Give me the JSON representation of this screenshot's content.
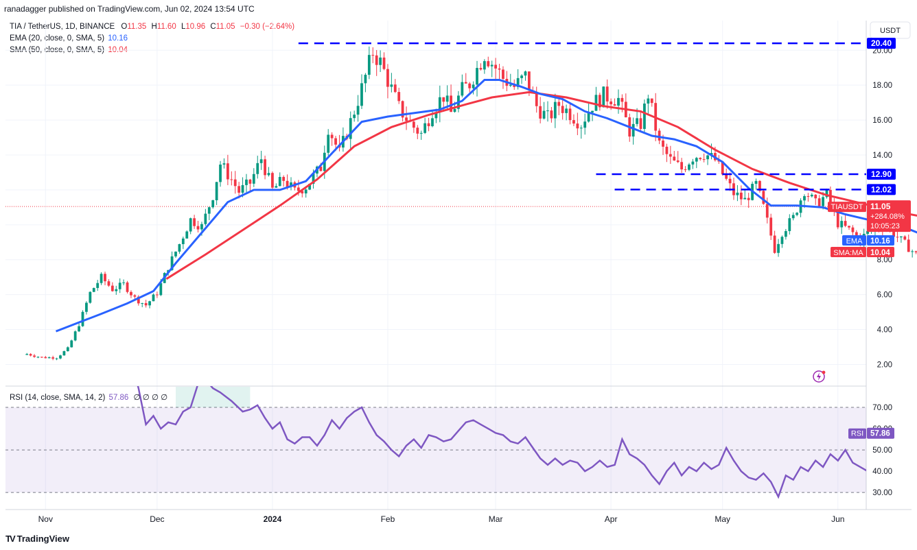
{
  "caption": "ranadagger published on TradingView.com, Jun 02, 2024 13:54 UTC",
  "brand": "TradingView",
  "legend": {
    "symbol": "TIA / TetherUS, 1D, BINANCE",
    "ohlc": [
      {
        "k": "O",
        "v": "11.35"
      },
      {
        "k": "H",
        "v": "11.60"
      },
      {
        "k": "L",
        "v": "10.96"
      },
      {
        "k": "C",
        "v": "11.05"
      }
    ],
    "change": "−0.30 (−2.64%)",
    "ema": {
      "label": "EMA (20, close, 0, SMA, 5)",
      "value": "10.16"
    },
    "sma": {
      "label": "SMA (50, close, 0, SMA, 5)",
      "value": "10.04"
    }
  },
  "rsi_legend": {
    "label": "RSI (14, close, SMA, 14, 2)",
    "value": "57.86",
    "extra": "∅ ∅ ∅ ∅"
  },
  "colors": {
    "up": "#089981",
    "down": "#f23645",
    "ema": "#2962ff",
    "sma": "#f23645",
    "rsi": "#7e57c2",
    "level": "#0000ff"
  },
  "chart_data": {
    "type": "candlestick",
    "currency": "USDT",
    "x_labels": [
      {
        "label": "Nov",
        "date": "2023-11-01"
      },
      {
        "label": "Dec",
        "date": "2023-12-01"
      },
      {
        "label": "2024",
        "date": "2024-01-01"
      },
      {
        "label": "Feb",
        "date": "2024-02-01"
      },
      {
        "label": "Mar",
        "date": "2024-03-01"
      },
      {
        "label": "Apr",
        "date": "2024-04-01"
      },
      {
        "label": "May",
        "date": "2024-05-01"
      },
      {
        "label": "Jun",
        "date": "2024-06-01"
      }
    ],
    "x_range": [
      "2023-10-27",
      "2024-06-30"
    ],
    "y_range": [
      0.8,
      21.7
    ],
    "y_ticks": [
      "2.00",
      "4.00",
      "6.00",
      "8.00",
      "10.00",
      "12.00",
      "14.00",
      "16.00",
      "18.00",
      "20.00"
    ],
    "horizontal_levels": [
      {
        "value": 20.4,
        "label": "20.40",
        "from": "2024-01-08"
      },
      {
        "value": 12.9,
        "label": "12.90",
        "from": "2024-03-28"
      },
      {
        "value": 12.02,
        "label": "12.02",
        "from": "2024-04-02"
      }
    ],
    "closes": [
      [
        0,
        2.6
      ],
      [
        4,
        2.4
      ],
      [
        8,
        2.4
      ],
      [
        11,
        2.9
      ],
      [
        14,
        4.3
      ],
      [
        17,
        6.1
      ],
      [
        20,
        7.0
      ],
      [
        23,
        6.3
      ],
      [
        26,
        6.6
      ],
      [
        29,
        5.8
      ],
      [
        32,
        5.4
      ],
      [
        35,
        6.1
      ],
      [
        38,
        7.6
      ],
      [
        41,
        8.9
      ],
      [
        44,
        10.3
      ],
      [
        47,
        9.9
      ],
      [
        50,
        11.7
      ],
      [
        52,
        13.5
      ],
      [
        55,
        12.6
      ],
      [
        57,
        11.9
      ],
      [
        60,
        12.4
      ],
      [
        63,
        13.8
      ],
      [
        66,
        12.0
      ],
      [
        69,
        12.6
      ],
      [
        72,
        11.9
      ],
      [
        75,
        12.2
      ],
      [
        79,
        13.3
      ],
      [
        81,
        15.6
      ],
      [
        84,
        14.1
      ],
      [
        87,
        15.9
      ],
      [
        90,
        17.8
      ],
      [
        93,
        19.9
      ],
      [
        95,
        19.3
      ],
      [
        97,
        18.3
      ],
      [
        100,
        16.7
      ],
      [
        103,
        15.8
      ],
      [
        106,
        15.2
      ],
      [
        109,
        16.6
      ],
      [
        112,
        17.4
      ],
      [
        114,
        16.4
      ],
      [
        117,
        17.7
      ],
      [
        119,
        18.1
      ],
      [
        123,
        19.8
      ],
      [
        126,
        19.0
      ],
      [
        128,
        18.4
      ],
      [
        131,
        17.9
      ],
      [
        134,
        18.5
      ],
      [
        137,
        16.8
      ],
      [
        140,
        16.1
      ],
      [
        143,
        16.9
      ],
      [
        146,
        16.4
      ],
      [
        149,
        15.8
      ],
      [
        152,
        16.9
      ],
      [
        155,
        17.4
      ],
      [
        159,
        17.2
      ],
      [
        162,
        15.4
      ],
      [
        165,
        15.8
      ],
      [
        167,
        17.5
      ],
      [
        170,
        14.6
      ],
      [
        173,
        13.7
      ],
      [
        176,
        13.2
      ],
      [
        179,
        13.9
      ],
      [
        182,
        14.1
      ],
      [
        185,
        13.7
      ],
      [
        187,
        12.9
      ],
      [
        190,
        11.8
      ],
      [
        193,
        11.4
      ],
      [
        196,
        12.3
      ],
      [
        198,
        11.0
      ],
      [
        201,
        8.6
      ],
      [
        203,
        9.6
      ],
      [
        206,
        10.4
      ],
      [
        209,
        12.0
      ],
      [
        212,
        11.2
      ],
      [
        215,
        11.7
      ],
      [
        218,
        10.1
      ],
      [
        221,
        9.7
      ],
      [
        224,
        9.2
      ],
      [
        227,
        9.7
      ],
      [
        230,
        10.0
      ],
      [
        233,
        9.5
      ],
      [
        236,
        8.9
      ],
      [
        239,
        8.3
      ],
      [
        242,
        8.6
      ],
      [
        245,
        8.9
      ],
      [
        248,
        9.5
      ],
      [
        251,
        9.1
      ],
      [
        254,
        8.9
      ],
      [
        257,
        9.3
      ],
      [
        260,
        9.3
      ],
      [
        263,
        11.6
      ],
      [
        265,
        11.1
      ],
      [
        268,
        11.0
      ]
    ],
    "ema20": [
      [
        7.8,
        3.9
      ],
      [
        20,
        4.9
      ],
      [
        27,
        5.5
      ],
      [
        34,
        6.2
      ],
      [
        40,
        7.8
      ],
      [
        48,
        9.8
      ],
      [
        54,
        11.3
      ],
      [
        61,
        12.0
      ],
      [
        68,
        12.0
      ],
      [
        75,
        12.5
      ],
      [
        82,
        14.1
      ],
      [
        90,
        15.9
      ],
      [
        97,
        16.2
      ],
      [
        104,
        16.4
      ],
      [
        111,
        16.6
      ],
      [
        117,
        17.1
      ],
      [
        123,
        18.3
      ],
      [
        127,
        18.3
      ],
      [
        133,
        17.9
      ],
      [
        138,
        17.5
      ],
      [
        144,
        17.2
      ],
      [
        150,
        16.5
      ],
      [
        156,
        16.1
      ],
      [
        162,
        15.6
      ],
      [
        168,
        15.1
      ],
      [
        174,
        14.9
      ],
      [
        180,
        14.5
      ],
      [
        187,
        13.6
      ],
      [
        194,
        12.1
      ],
      [
        200,
        11.1
      ],
      [
        207,
        11.1
      ],
      [
        214,
        11.0
      ],
      [
        220,
        10.6
      ],
      [
        226,
        10.3
      ],
      [
        233,
        10.1
      ],
      [
        240,
        9.5
      ],
      [
        246,
        9.4
      ],
      [
        252,
        9.3
      ],
      [
        257,
        9.5
      ],
      [
        263,
        10.0
      ],
      [
        268,
        10.2
      ]
    ],
    "sma50": [
      [
        37.5,
        6.9
      ],
      [
        48,
        8.3
      ],
      [
        58,
        9.7
      ],
      [
        68,
        11.1
      ],
      [
        78,
        12.6
      ],
      [
        88,
        14.5
      ],
      [
        98,
        15.6
      ],
      [
        108,
        16.3
      ],
      [
        118,
        16.9
      ],
      [
        125,
        17.3
      ],
      [
        135,
        17.6
      ],
      [
        145,
        17.3
      ],
      [
        155,
        16.8
      ],
      [
        165,
        16.5
      ],
      [
        175,
        15.6
      ],
      [
        185,
        14.3
      ],
      [
        195,
        13.2
      ],
      [
        205,
        12.4
      ],
      [
        215,
        11.7
      ],
      [
        225,
        11.2
      ],
      [
        235,
        10.7
      ],
      [
        245,
        10.3
      ],
      [
        255,
        10.1
      ],
      [
        262,
        10.0
      ],
      [
        268,
        10.1
      ]
    ],
    "last_price": {
      "label": "TIAUSDT",
      "value": "11.05",
      "change_pct": "+284.08%",
      "countdown": "10:05:23"
    },
    "last_ema": {
      "label": "EMA",
      "value": "10.16"
    },
    "last_sma": {
      "label": "SMA:MA",
      "value": "10.04"
    },
    "rsi": {
      "y_range": [
        22,
        80
      ],
      "ticks": [
        "30.00",
        "40.00",
        "50.00",
        "60.00",
        "70.00"
      ],
      "band": [
        30,
        70
      ],
      "mid": 50,
      "visible_start_index": 28,
      "series": [
        [
          28,
          92
        ],
        [
          30,
          79
        ],
        [
          32,
          62
        ],
        [
          34,
          66
        ],
        [
          36,
          60
        ],
        [
          38,
          63
        ],
        [
          40,
          62
        ],
        [
          42,
          68
        ],
        [
          44,
          70
        ],
        [
          46,
          81
        ],
        [
          48,
          83
        ],
        [
          50,
          79
        ],
        [
          52,
          77
        ],
        [
          55,
          73
        ],
        [
          58,
          68
        ],
        [
          60,
          69
        ],
        [
          62,
          71
        ],
        [
          64,
          65
        ],
        [
          66,
          60
        ],
        [
          68,
          63
        ],
        [
          70,
          55
        ],
        [
          72,
          53
        ],
        [
          74,
          56
        ],
        [
          76,
          56
        ],
        [
          78,
          52
        ],
        [
          80,
          57
        ],
        [
          82,
          64
        ],
        [
          84,
          60
        ],
        [
          86,
          65
        ],
        [
          88,
          68
        ],
        [
          90,
          70
        ],
        [
          92,
          63
        ],
        [
          94,
          57
        ],
        [
          96,
          54
        ],
        [
          98,
          50
        ],
        [
          100,
          47
        ],
        [
          102,
          52
        ],
        [
          104,
          55
        ],
        [
          106,
          51
        ],
        [
          108,
          57
        ],
        [
          110,
          56
        ],
        [
          112,
          54
        ],
        [
          114,
          55
        ],
        [
          116,
          59
        ],
        [
          118,
          63
        ],
        [
          120,
          64
        ],
        [
          122,
          62
        ],
        [
          124,
          60
        ],
        [
          126,
          58
        ],
        [
          128,
          57
        ],
        [
          130,
          54
        ],
        [
          132,
          53
        ],
        [
          134,
          56
        ],
        [
          136,
          51
        ],
        [
          138,
          46
        ],
        [
          140,
          43
        ],
        [
          142,
          46
        ],
        [
          144,
          43
        ],
        [
          146,
          45
        ],
        [
          148,
          44
        ],
        [
          150,
          40
        ],
        [
          152,
          42
        ],
        [
          154,
          45
        ],
        [
          156,
          42
        ],
        [
          158,
          43
        ],
        [
          160,
          55
        ],
        [
          162,
          48
        ],
        [
          164,
          46
        ],
        [
          166,
          43
        ],
        [
          168,
          38
        ],
        [
          170,
          34
        ],
        [
          172,
          40
        ],
        [
          174,
          44
        ],
        [
          176,
          38
        ],
        [
          178,
          42
        ],
        [
          180,
          40
        ],
        [
          182,
          44
        ],
        [
          184,
          41
        ],
        [
          186,
          43
        ],
        [
          188,
          51
        ],
        [
          190,
          45
        ],
        [
          192,
          40
        ],
        [
          194,
          37
        ],
        [
          196,
          36
        ],
        [
          198,
          39
        ],
        [
          200,
          35
        ],
        [
          202,
          28
        ],
        [
          204,
          38
        ],
        [
          206,
          36
        ],
        [
          208,
          42
        ],
        [
          210,
          40
        ],
        [
          212,
          45
        ],
        [
          214,
          42
        ],
        [
          216,
          48
        ],
        [
          218,
          45
        ],
        [
          220,
          50
        ],
        [
          222,
          44
        ],
        [
          224,
          42
        ],
        [
          226,
          40
        ],
        [
          228,
          42
        ],
        [
          230,
          44
        ],
        [
          232,
          44
        ],
        [
          234,
          40
        ],
        [
          236,
          40
        ],
        [
          238,
          37
        ],
        [
          240,
          38
        ],
        [
          242,
          34
        ],
        [
          244,
          38
        ],
        [
          246,
          44
        ],
        [
          248,
          48
        ],
        [
          250,
          45
        ],
        [
          252,
          48
        ],
        [
          254,
          45
        ],
        [
          256,
          42
        ],
        [
          258,
          47
        ],
        [
          260,
          56
        ],
        [
          262,
          60
        ],
        [
          264,
          67
        ],
        [
          265,
          58
        ],
        [
          266,
          57
        ],
        [
          268,
          61
        ],
        [
          270,
          58
        ]
      ],
      "current": {
        "label": "RSI",
        "value": "57.86"
      }
    }
  }
}
